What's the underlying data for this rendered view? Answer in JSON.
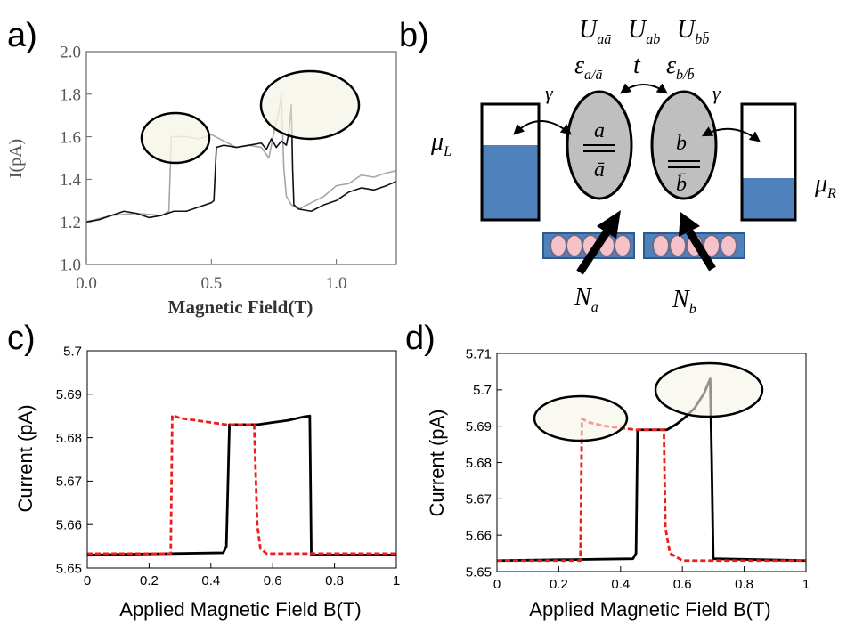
{
  "chart_data": [
    {
      "type": "line",
      "panel_label": "a)",
      "xlabel": "Magnetic Field(T)",
      "ylabel": "I(pA)",
      "xlim": [
        0,
        1.24
      ],
      "ylim": [
        1.0,
        2.0
      ],
      "xticks": [
        {
          "value": 0,
          "label": "0.0"
        },
        {
          "value": 0.5,
          "label": "0.5"
        },
        {
          "value": 1,
          "label": "1.0"
        }
      ],
      "yticks": [
        {
          "value": 1,
          "label": "1.0"
        },
        {
          "value": 1.2,
          "label": "1.2"
        },
        {
          "value": 1.4,
          "label": "1.4"
        },
        {
          "value": 1.6,
          "label": "1.6"
        },
        {
          "value": 1.8,
          "label": "1.8"
        },
        {
          "value": 2,
          "label": "2.0"
        }
      ],
      "series": [
        {
          "color": "#a6a6a6",
          "linestyle": "solid",
          "x": [
            0,
            0.1,
            0.2,
            0.3,
            0.33,
            0.34,
            0.4,
            0.45,
            0.5,
            0.55,
            0.6,
            0.65,
            0.7,
            0.73,
            0.75,
            0.77,
            0.78,
            0.79,
            0.8,
            0.82,
            0.85,
            0.9,
            0.95,
            1.0,
            1.05,
            1.1,
            1.15,
            1.2,
            1.24
          ],
          "values": [
            1.2,
            1.23,
            1.24,
            1.23,
            1.25,
            1.6,
            1.6,
            1.59,
            1.61,
            1.58,
            1.55,
            1.56,
            1.55,
            1.5,
            1.62,
            1.72,
            1.8,
            1.45,
            1.32,
            1.28,
            1.26,
            1.29,
            1.32,
            1.37,
            1.38,
            1.42,
            1.41,
            1.43,
            1.44
          ]
        },
        {
          "color": "#111111",
          "linestyle": "solid",
          "x": [
            0,
            0.05,
            0.1,
            0.15,
            0.2,
            0.25,
            0.3,
            0.35,
            0.4,
            0.45,
            0.5,
            0.51,
            0.52,
            0.55,
            0.6,
            0.65,
            0.7,
            0.72,
            0.74,
            0.76,
            0.78,
            0.8,
            0.81,
            0.82,
            0.825,
            0.83,
            0.85,
            0.9,
            0.95,
            1.0,
            1.05,
            1.1,
            1.15,
            1.2,
            1.24
          ],
          "values": [
            1.2,
            1.21,
            1.23,
            1.25,
            1.24,
            1.22,
            1.23,
            1.25,
            1.25,
            1.27,
            1.29,
            1.3,
            1.55,
            1.56,
            1.55,
            1.56,
            1.57,
            1.54,
            1.59,
            1.55,
            1.58,
            1.56,
            1.62,
            1.75,
            1.45,
            1.28,
            1.26,
            1.25,
            1.28,
            1.3,
            1.34,
            1.36,
            1.35,
            1.37,
            1.39
          ]
        }
      ]
    },
    {
      "type": "line",
      "panel_label": "c)",
      "xlabel": "Applied Magnetic Field B(T)",
      "ylabel": "Current (pA)",
      "xlim": [
        0,
        1
      ],
      "ylim": [
        5.65,
        5.7
      ],
      "xticks": [
        0,
        0.2,
        0.4,
        0.6,
        0.8,
        1
      ],
      "yticks": [
        5.65,
        5.66,
        5.67,
        5.68,
        5.69,
        5.7
      ],
      "series": [
        {
          "color": "#000000",
          "linestyle": "solid",
          "x": [
            0,
            0.44,
            0.45,
            0.46,
            0.55,
            0.6,
            0.65,
            0.7,
            0.72,
            0.725,
            1
          ],
          "values": [
            5.653,
            5.6535,
            5.655,
            5.683,
            5.683,
            5.6835,
            5.684,
            5.6848,
            5.685,
            5.653,
            5.653
          ]
        },
        {
          "color": "#ee1c1c",
          "linestyle": "dashed",
          "x": [
            0,
            0.27,
            0.275,
            0.3,
            0.35,
            0.4,
            0.45,
            0.54,
            0.55,
            0.56,
            0.58,
            1
          ],
          "values": [
            5.6533,
            5.6533,
            5.6852,
            5.6845,
            5.684,
            5.6835,
            5.683,
            5.683,
            5.66,
            5.6545,
            5.6533,
            5.6533
          ]
        }
      ]
    },
    {
      "type": "line",
      "panel_label": "d)",
      "xlabel": "Applied Magnetic Field B(T)",
      "ylabel": "Current (pA)",
      "xlim": [
        0,
        1
      ],
      "ylim": [
        5.65,
        5.71
      ],
      "xticks": [
        0,
        0.2,
        0.4,
        0.6,
        0.8,
        1
      ],
      "yticks": [
        5.65,
        5.66,
        5.67,
        5.68,
        5.69,
        5.7,
        5.71
      ],
      "series": [
        {
          "color": "#000000",
          "linestyle": "solid",
          "x": [
            0,
            0.44,
            0.45,
            0.455,
            0.55,
            0.58,
            0.61,
            0.64,
            0.67,
            0.69,
            0.695,
            0.7,
            1
          ],
          "values": [
            5.653,
            5.6535,
            5.655,
            5.689,
            5.689,
            5.6905,
            5.6925,
            5.695,
            5.699,
            5.703,
            5.68,
            5.6535,
            5.653
          ]
        },
        {
          "color": "#ee1c1c",
          "linestyle": "dashed",
          "x": [
            0,
            0.27,
            0.275,
            0.3,
            0.35,
            0.4,
            0.45,
            0.54,
            0.545,
            0.56,
            0.6,
            1
          ],
          "values": [
            5.653,
            5.653,
            5.692,
            5.691,
            5.69,
            5.6895,
            5.689,
            5.689,
            5.662,
            5.655,
            5.653,
            5.653
          ]
        }
      ]
    }
  ],
  "diagram": {
    "panel_label": "b)",
    "interactions": [
      {
        "symbol": "U",
        "subscript": "aā"
      },
      {
        "symbol": "U",
        "subscript": "ab"
      },
      {
        "symbol": "U",
        "subscript": "bb̄"
      }
    ],
    "levels": [
      {
        "symbol": "ε",
        "subscript": "a/ā"
      },
      {
        "symbol": "t"
      },
      {
        "symbol": "ε",
        "subscript": "b/b̄"
      }
    ],
    "couplings": [
      "γ",
      "γ"
    ],
    "leads": [
      {
        "symbol": "μ",
        "subscript": "L"
      },
      {
        "symbol": "μ",
        "subscript": "R"
      }
    ],
    "dots": [
      {
        "upper": "a",
        "lower": "ā"
      },
      {
        "upper": "b",
        "lower": "b̄"
      }
    ],
    "baths": [
      {
        "symbol": "N",
        "subscript": "a"
      },
      {
        "symbol": "N",
        "subscript": "b"
      }
    ]
  }
}
